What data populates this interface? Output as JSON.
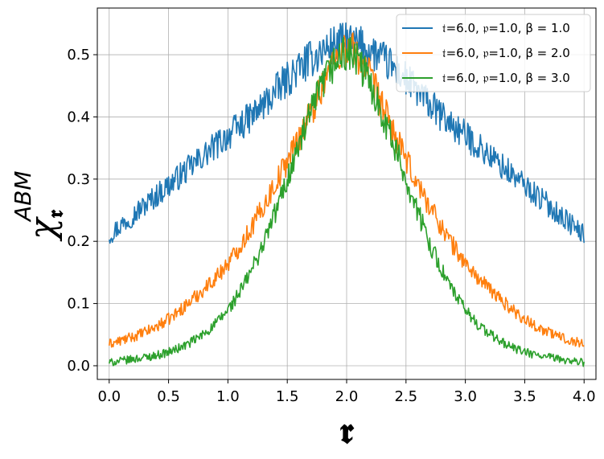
{
  "chart_data": {
    "type": "line",
    "xlabel": "𝖗",
    "ylabel": {
      "symbol": "χ",
      "subscript": "𝖗",
      "superscript": "ABM"
    },
    "xlim": [
      -0.1,
      4.1
    ],
    "ylim": [
      -0.022,
      0.575
    ],
    "xticks": [
      0.0,
      0.5,
      1.0,
      1.5,
      2.0,
      2.5,
      3.0,
      3.5,
      4.0
    ],
    "xtick_labels": [
      "0.0",
      "0.5",
      "1.0",
      "1.5",
      "2.0",
      "2.5",
      "3.0",
      "3.5",
      "4.0"
    ],
    "yticks": [
      0.0,
      0.1,
      0.2,
      0.3,
      0.4,
      0.5
    ],
    "ytick_labels": [
      "0.0",
      "0.1",
      "0.2",
      "0.3",
      "0.4",
      "0.5"
    ],
    "grid": true,
    "legend_position": "top-right",
    "x": [
      0.0,
      0.25,
      0.5,
      0.75,
      1.0,
      1.25,
      1.5,
      1.75,
      2.0,
      2.25,
      2.5,
      2.75,
      3.0,
      3.25,
      3.5,
      3.75,
      4.0
    ],
    "series": [
      {
        "name": "𝔱=6.0, 𝔭=1.0, β = 1.0",
        "color": "#1f77b4",
        "values": [
          0.21,
          0.25,
          0.29,
          0.33,
          0.37,
          0.41,
          0.46,
          0.5,
          0.52,
          0.5,
          0.46,
          0.41,
          0.37,
          0.33,
          0.29,
          0.25,
          0.21
        ]
      },
      {
        "name": "𝔱=6.0, 𝔭=1.0, β = 2.0",
        "color": "#ff7f0e",
        "values": [
          0.035,
          0.05,
          0.075,
          0.115,
          0.165,
          0.24,
          0.33,
          0.43,
          0.51,
          0.44,
          0.33,
          0.24,
          0.165,
          0.115,
          0.075,
          0.05,
          0.035
        ]
      },
      {
        "name": "𝔱=6.0, 𝔭=1.0, β = 3.0",
        "color": "#2ca02c",
        "values": [
          0.005,
          0.012,
          0.022,
          0.045,
          0.09,
          0.175,
          0.3,
          0.43,
          0.5,
          0.43,
          0.3,
          0.175,
          0.09,
          0.045,
          0.022,
          0.012,
          0.005
        ]
      }
    ]
  }
}
